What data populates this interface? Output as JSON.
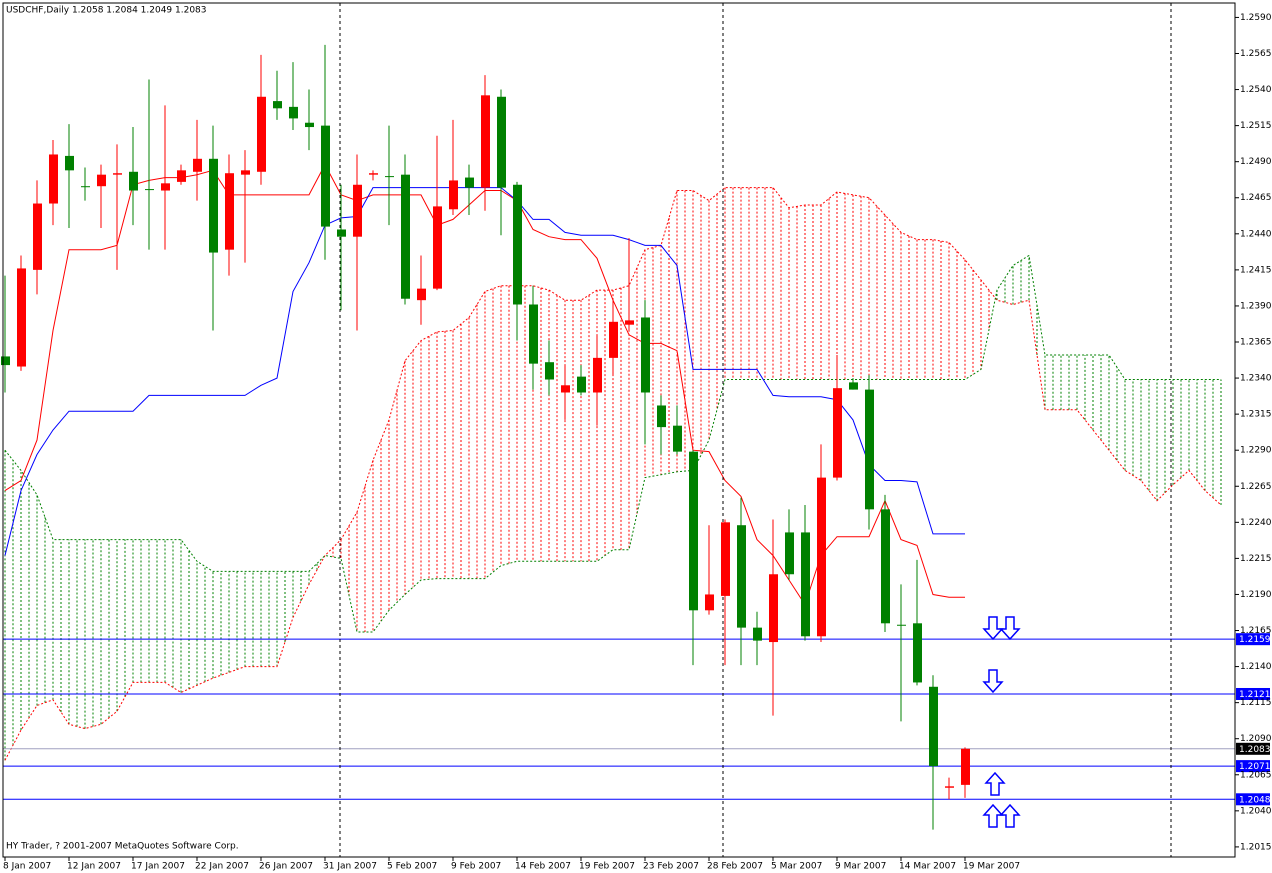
{
  "chart_data": {
    "type": "candlestick",
    "title": "USDCHF,Daily 1.2058 1.2084 1.2049 1.2083",
    "footer": "HY Trader, ? 2001-2007 MetaQuotes Software Corp.",
    "categories": [
      "8 Jan 2007",
      null,
      null,
      null,
      "12 Jan 2007",
      null,
      null,
      null,
      "17 Jan 2007",
      null,
      null,
      null,
      "22 Jan 2007",
      null,
      null,
      null,
      "26 Jan 2007",
      null,
      null,
      null,
      "31 Jan 2007",
      null,
      null,
      null,
      "5 Feb 2007",
      null,
      null,
      null,
      "9 Feb 2007",
      null,
      null,
      null,
      "14 Feb 2007",
      null,
      null,
      null,
      "19 Feb 2007",
      null,
      null,
      null,
      "23 Feb 2007",
      null,
      null,
      null,
      "28 Feb 2007",
      null,
      null,
      null,
      "5 Mar 2007",
      null,
      null,
      null,
      "9 Mar 2007",
      null,
      null,
      null,
      "14 Mar 2007",
      null,
      null,
      null,
      "19 Mar 2007",
      null,
      null,
      null,
      null,
      null,
      null,
      null,
      null,
      null,
      null,
      null,
      null,
      null,
      null,
      null,
      null
    ],
    "open": [
      1.2355,
      1.2348,
      1.2415,
      1.2461,
      1.2494,
      1.2473,
      1.2473,
      1.2481,
      1.2483,
      1.2471,
      1.247,
      1.2476,
      1.2483,
      1.2492,
      1.2429,
      1.2481,
      1.2483,
      1.2532,
      1.2528,
      1.2517,
      1.2515,
      1.2443,
      1.2438,
      1.2481,
      1.248,
      1.2481,
      1.2394,
      1.2402,
      1.2457,
      1.2479,
      1.2472,
      1.2535,
      1.2474,
      1.2391,
      1.2351,
      1.233,
      1.2341,
      1.233,
      1.2354,
      1.2377,
      1.2382,
      1.2321,
      1.2307,
      1.2289,
      1.2179,
      1.2189,
      1.2238,
      1.2167,
      1.2157,
      1.2233,
      1.2233,
      1.2161,
      1.2271,
      1.2337,
      1.2332,
      1.2249,
      1.2169,
      1.217,
      1.2126,
      1.2056,
      1.2058,
      null,
      null,
      null,
      null,
      null,
      null,
      null,
      null,
      null,
      null,
      null,
      null,
      null,
      null,
      null,
      null
    ],
    "high": [
      1.2411,
      1.2425,
      1.2477,
      1.2505,
      1.2516,
      1.2486,
      1.2488,
      1.2502,
      1.2514,
      1.2547,
      1.2529,
      1.2488,
      1.2519,
      1.2515,
      1.2495,
      1.2498,
      1.2564,
      1.2553,
      1.2559,
      1.254,
      1.2571,
      1.2474,
      1.2495,
      1.2484,
      1.2515,
      1.2495,
      1.2425,
      1.2508,
      1.2519,
      1.2488,
      1.255,
      1.254,
      1.2476,
      1.2404,
      1.2366,
      1.2349,
      1.2349,
      1.237,
      1.2394,
      1.2437,
      1.2394,
      1.2328,
      1.2321,
      1.229,
      1.2238,
      1.2242,
      1.2257,
      1.2178,
      1.2242,
      1.2249,
      1.2252,
      1.2294,
      1.2356,
      1.234,
      1.2342,
      1.2259,
      1.2197,
      1.2214,
      1.2134,
      1.2063,
      1.2084,
      null,
      null,
      null,
      null,
      null,
      null,
      null,
      null,
      null,
      null,
      null,
      null,
      null,
      null,
      null,
      null
    ],
    "low": [
      1.233,
      1.2345,
      1.2398,
      1.2446,
      1.2444,
      1.2463,
      1.2444,
      1.2415,
      1.2446,
      1.2429,
      1.2429,
      1.2474,
      1.2463,
      1.2373,
      1.2411,
      1.242,
      1.2474,
      1.2519,
      1.2512,
      1.2498,
      1.2422,
      1.2387,
      1.2373,
      1.2477,
      1.2446,
      1.2391,
      1.2377,
      1.2401,
      1.2453,
      1.2453,
      1.2456,
      1.2439,
      1.2366,
      1.2332,
      1.2328,
      1.2311,
      1.2328,
      1.2307,
      1.2342,
      1.2373,
      1.2294,
      1.2287,
      1.2287,
      1.2141,
      1.2176,
      1.2141,
      1.2141,
      1.2141,
      1.2106,
      1.22,
      1.2158,
      1.2157,
      1.2269,
      1.2332,
      1.2235,
      1.2164,
      1.2102,
      1.2127,
      1.2027,
      1.2048,
      1.2049,
      null,
      null,
      null,
      null,
      null,
      null,
      null,
      null,
      null,
      null,
      null,
      null,
      null,
      null,
      null,
      null
    ],
    "close": [
      1.2349,
      1.2416,
      1.2461,
      1.2495,
      1.2484,
      1.2473,
      1.2481,
      1.2482,
      1.247,
      1.2471,
      1.2475,
      1.2484,
      1.2492,
      1.2427,
      1.2482,
      1.2484,
      1.2535,
      1.2527,
      1.252,
      1.2514,
      1.2445,
      1.2438,
      1.2474,
      1.2482,
      1.248,
      1.2395,
      1.2402,
      1.2459,
      1.2477,
      1.2472,
      1.2536,
      1.2472,
      1.2391,
      1.235,
      1.2339,
      1.2335,
      1.233,
      1.2354,
      1.2379,
      1.238,
      1.233,
      1.2306,
      1.2289,
      1.2179,
      1.219,
      1.224,
      1.2167,
      1.2158,
      1.2204,
      1.2204,
      1.2161,
      1.2271,
      1.2333,
      1.2332,
      1.2249,
      1.217,
      1.2169,
      1.2129,
      1.2071,
      1.2057,
      1.2083,
      null,
      null,
      null,
      null,
      null,
      null,
      null,
      null,
      null,
      null,
      null,
      null,
      null,
      null,
      null,
      null
    ],
    "up_color": "#ff0000",
    "down_color": "#008000",
    "tenkan": {
      "color": "#ff0000",
      "values": [
        1.2262,
        1.2269,
        1.2297,
        1.2373,
        1.2429,
        1.2429,
        1.2429,
        1.2432,
        1.2474,
        1.2477,
        1.2479,
        1.2479,
        1.2481,
        1.2484,
        1.2467,
        1.2467,
        1.2467,
        1.2467,
        1.2467,
        1.2467,
        1.2488,
        1.2467,
        1.2463,
        1.2467,
        1.2467,
        1.2467,
        1.2467,
        1.2446,
        1.245,
        1.246,
        1.247,
        1.247,
        1.2463,
        1.2443,
        1.2438,
        1.2436,
        1.2436,
        1.2423,
        1.2394,
        1.237,
        1.2364,
        1.2364,
        1.2359,
        1.229,
        1.2289,
        1.2269,
        1.2258,
        1.2228,
        1.2217,
        1.22,
        1.2183,
        1.2217,
        1.223,
        1.223,
        1.223,
        1.2255,
        1.2228,
        1.2224,
        1.219,
        1.2188,
        1.2188,
        null,
        null,
        null,
        null,
        null,
        null,
        null,
        null,
        null,
        null,
        null,
        null,
        null,
        null,
        null,
        null
      ]
    },
    "kijun": {
      "color": "#0000ff",
      "values": [
        1.2217,
        1.2262,
        1.2287,
        1.2304,
        1.2317,
        1.2317,
        1.2317,
        1.2317,
        1.2317,
        1.2328,
        1.2328,
        1.2328,
        1.2328,
        1.2328,
        1.2328,
        1.2328,
        1.2335,
        1.234,
        1.24,
        1.242,
        1.2446,
        1.2451,
        1.2452,
        1.2472,
        1.2472,
        1.2472,
        1.2472,
        1.2472,
        1.2472,
        1.2472,
        1.2472,
        1.2472,
        1.2463,
        1.245,
        1.245,
        1.2441,
        1.2439,
        1.2439,
        1.2439,
        1.2436,
        1.2432,
        1.2432,
        1.2418,
        1.2346,
        1.2346,
        1.2346,
        1.2346,
        1.2346,
        1.2328,
        1.2327,
        1.2327,
        1.2327,
        1.2325,
        1.2311,
        1.228,
        1.2269,
        1.2269,
        1.2268,
        1.2232,
        1.2232,
        1.2232,
        null,
        null,
        null,
        null,
        null,
        null,
        null,
        null,
        null,
        null,
        null,
        null,
        null,
        null,
        null,
        null
      ]
    },
    "span_a": {
      "color": "#ff0000",
      "values": [
        1.2075,
        1.2096,
        1.2113,
        1.2117,
        1.21,
        1.2097,
        1.21,
        1.2109,
        1.2129,
        1.2129,
        1.2129,
        1.2122,
        1.2127,
        1.2132,
        1.2136,
        1.214,
        1.214,
        1.214,
        1.2174,
        1.2197,
        1.2217,
        1.2228,
        1.2247,
        1.2283,
        1.2311,
        1.2352,
        1.2366,
        1.2372,
        1.2373,
        1.2382,
        1.24,
        1.2404,
        1.2404,
        1.2404,
        1.2401,
        1.2394,
        1.2394,
        1.2401,
        1.2401,
        1.2404,
        1.2429,
        1.2432,
        1.247,
        1.247,
        1.2463,
        1.2472,
        1.2472,
        1.2472,
        1.2472,
        1.2458,
        1.246,
        1.246,
        1.2469,
        1.2467,
        1.2465,
        1.2453,
        1.2441,
        1.2436,
        1.2436,
        1.2434,
        1.2422,
        1.2408,
        1.2394,
        1.2391,
        1.2394,
        1.2318,
        1.2318,
        1.2318,
        1.2304,
        1.229,
        1.2276,
        1.2269,
        1.2255,
        1.2266,
        1.2276,
        1.2262,
        1.2252
      ]
    },
    "span_b": {
      "color": "#008000",
      "values": [
        1.229,
        1.2276,
        1.2259,
        1.2228,
        1.2228,
        1.2228,
        1.2228,
        1.2228,
        1.2228,
        1.2228,
        1.2228,
        1.2228,
        1.2213,
        1.2206,
        1.2206,
        1.2206,
        1.2206,
        1.2206,
        1.2206,
        1.2206,
        1.2217,
        1.2215,
        1.2164,
        1.2164,
        1.2179,
        1.219,
        1.22,
        1.2201,
        1.2201,
        1.2201,
        1.2201,
        1.221,
        1.2213,
        1.2213,
        1.2213,
        1.2213,
        1.2213,
        1.2213,
        1.2221,
        1.2221,
        1.2271,
        1.2273,
        1.2275,
        1.2276,
        1.2297,
        1.2339,
        1.2339,
        1.2339,
        1.2339,
        1.2339,
        1.2339,
        1.2339,
        1.2339,
        1.2339,
        1.2339,
        1.2339,
        1.2339,
        1.2339,
        1.2339,
        1.2339,
        1.2339,
        1.2346,
        1.2401,
        1.2418,
        1.2425,
        1.2356,
        1.2356,
        1.2356,
        1.2356,
        1.2356,
        1.2339,
        1.2339,
        1.2339,
        1.2339,
        1.2339,
        1.2339,
        1.2339
      ]
    },
    "levels": {
      "color": "#0000ff",
      "values": [
        1.2159,
        1.2121,
        1.2071,
        1.2048
      ]
    },
    "last_price": {
      "color": "#000000",
      "line_color": "#a0a0c0",
      "value": 1.2083
    },
    "ylim": [
      1.2008,
      1.26
    ],
    "yticks": [
      1.2015,
      {
        "value": 1.204,
        "label": "1.2040"
      },
      1.2065,
      {
        "value": 1.209,
        "label": "1.2090"
      },
      1.2115,
      {
        "value": 1.214,
        "label": "1.2140"
      },
      1.2165,
      {
        "value": 1.219,
        "label": "1.2190"
      },
      1.2215,
      {
        "value": 1.224,
        "label": "1.2240"
      },
      1.2265,
      {
        "value": 1.229,
        "label": "1.2290"
      },
      1.2315,
      {
        "value": 1.234,
        "label": "1.2340"
      },
      1.2365,
      {
        "value": 1.239,
        "label": "1.2390"
      },
      1.2415,
      {
        "value": 1.244,
        "label": "1.2440"
      },
      1.2465,
      {
        "value": 1.249,
        "label": "1.2490"
      },
      1.2515,
      {
        "value": 1.254,
        "label": "1.2540"
      },
      1.2565,
      {
        "value": 1.259,
        "label": "1.2590"
      }
    ],
    "grid": false
  }
}
